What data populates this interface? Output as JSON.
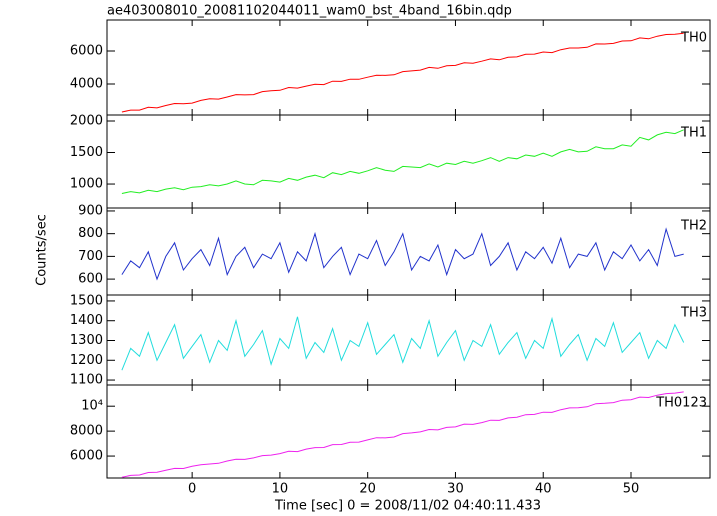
{
  "figure": {
    "title": "ae403008010_20081102044011_wam0_bst_4band_16bin.qdp",
    "xlabel": "Time [sec] 0 = 2008/11/02 04:40:11.433",
    "ylabel": "Counts/sec",
    "xlim": [
      -9.7,
      59
    ],
    "xticks": [
      0,
      10,
      20,
      30,
      40,
      50
    ],
    "x": [
      -8,
      -7,
      -6,
      -5,
      -4,
      -3,
      -2,
      -1,
      0,
      1,
      2,
      3,
      4,
      5,
      6,
      7,
      8,
      9,
      10,
      11,
      12,
      13,
      14,
      15,
      16,
      17,
      18,
      19,
      20,
      21,
      22,
      23,
      24,
      25,
      26,
      27,
      28,
      29,
      30,
      31,
      32,
      33,
      34,
      35,
      36,
      37,
      38,
      39,
      40,
      41,
      42,
      43,
      44,
      45,
      46,
      47,
      48,
      49,
      50,
      51,
      52,
      53,
      54,
      55,
      56
    ]
  },
  "chart_data": [
    {
      "type": "line",
      "ylim": [
        2120,
        7880
      ],
      "yticks": [
        4000,
        6000
      ],
      "series": [
        {
          "name": "TH0",
          "color": "#ff0000",
          "values": [
            2300,
            2415,
            2420,
            2585,
            2550,
            2695,
            2820,
            2805,
            2840,
            3005,
            3100,
            3085,
            3210,
            3355,
            3340,
            3355,
            3540,
            3595,
            3620,
            3785,
            3750,
            3875,
            3980,
            3965,
            4170,
            4155,
            4290,
            4285,
            4410,
            4535,
            4520,
            4555,
            4750,
            4795,
            4840,
            5005,
            4950,
            5105,
            5130,
            5285,
            5260,
            5385,
            5520,
            5465,
            5620,
            5645,
            5800,
            5815,
            5940,
            5905,
            6080,
            6185,
            6180,
            6225,
            6430,
            6425,
            6460,
            6605,
            6620,
            6795,
            6740,
            6895,
            7000,
            7015,
            7080
          ]
        }
      ]
    },
    {
      "type": "line",
      "ylim": [
        620,
        2095
      ],
      "yticks": [
        1000,
        1500,
        2000
      ],
      "series": [
        {
          "name": "TH1",
          "color": "#22ee22",
          "values": [
            850,
            880,
            860,
            900,
            880,
            920,
            940,
            910,
            950,
            960,
            990,
            970,
            1000,
            1050,
            1000,
            990,
            1060,
            1050,
            1030,
            1090,
            1060,
            1110,
            1140,
            1100,
            1180,
            1150,
            1200,
            1170,
            1210,
            1260,
            1220,
            1200,
            1280,
            1270,
            1260,
            1320,
            1270,
            1330,
            1310,
            1360,
            1330,
            1370,
            1420,
            1360,
            1420,
            1400,
            1460,
            1440,
            1490,
            1440,
            1510,
            1550,
            1510,
            1520,
            1590,
            1560,
            1560,
            1620,
            1600,
            1740,
            1700,
            1780,
            1820,
            1800,
            1860
          ]
        }
      ]
    },
    {
      "type": "line",
      "ylim": [
        530,
        913
      ],
      "yticks": [
        600,
        700,
        800,
        900
      ],
      "series": [
        {
          "name": "TH2",
          "color": "#2233cc",
          "values": [
            620,
            680,
            650,
            720,
            600,
            700,
            760,
            640,
            690,
            730,
            660,
            780,
            620,
            700,
            740,
            650,
            710,
            690,
            760,
            630,
            720,
            680,
            800,
            650,
            700,
            740,
            620,
            710,
            690,
            770,
            660,
            720,
            800,
            640,
            700,
            680,
            750,
            620,
            730,
            690,
            710,
            800,
            660,
            700,
            760,
            640,
            720,
            690,
            740,
            670,
            780,
            650,
            710,
            700,
            760,
            640,
            720,
            690,
            750,
            680,
            730,
            660,
            820,
            700,
            710
          ]
        }
      ]
    },
    {
      "type": "line",
      "ylim": [
        1075,
        1530
      ],
      "yticks": [
        1100,
        1200,
        1300,
        1400,
        1500
      ],
      "series": [
        {
          "name": "TH3",
          "color": "#22dddd",
          "values": [
            1150,
            1260,
            1220,
            1340,
            1200,
            1290,
            1380,
            1210,
            1270,
            1330,
            1190,
            1300,
            1250,
            1400,
            1220,
            1280,
            1350,
            1180,
            1310,
            1260,
            1420,
            1210,
            1290,
            1240,
            1360,
            1200,
            1300,
            1270,
            1390,
            1230,
            1280,
            1330,
            1190,
            1310,
            1260,
            1400,
            1220,
            1290,
            1350,
            1200,
            1300,
            1270,
            1380,
            1230,
            1290,
            1340,
            1210,
            1300,
            1260,
            1410,
            1220,
            1280,
            1330,
            1200,
            1310,
            1270,
            1390,
            1240,
            1290,
            1340,
            1210,
            1300,
            1260,
            1380,
            1290
          ]
        }
      ]
    },
    {
      "type": "line",
      "ylim": [
        4240,
        11700
      ],
      "yticks": [
        6000,
        8000,
        {
          "value": 10000,
          "label": "10⁴"
        }
      ],
      "series": [
        {
          "name": "TH0123",
          "color": "#ee22ee",
          "values": [
            4300,
            4450,
            4480,
            4680,
            4700,
            4860,
            5010,
            5000,
            5180,
            5300,
            5360,
            5420,
            5600,
            5740,
            5730,
            5850,
            6040,
            6080,
            6200,
            6380,
            6360,
            6560,
            6680,
            6690,
            6920,
            6930,
            7100,
            7120,
            7300,
            7470,
            7460,
            7530,
            7800,
            7860,
            7940,
            8130,
            8100,
            8300,
            8340,
            8560,
            8540,
            8680,
            8880,
            8860,
            9060,
            9120,
            9320,
            9340,
            9520,
            9500,
            9720,
            9860,
            9880,
            9950,
            10200,
            10230,
            10290,
            10480,
            10520,
            10730,
            10700,
            10880,
            11010,
            11050,
            11150
          ]
        }
      ]
    }
  ]
}
